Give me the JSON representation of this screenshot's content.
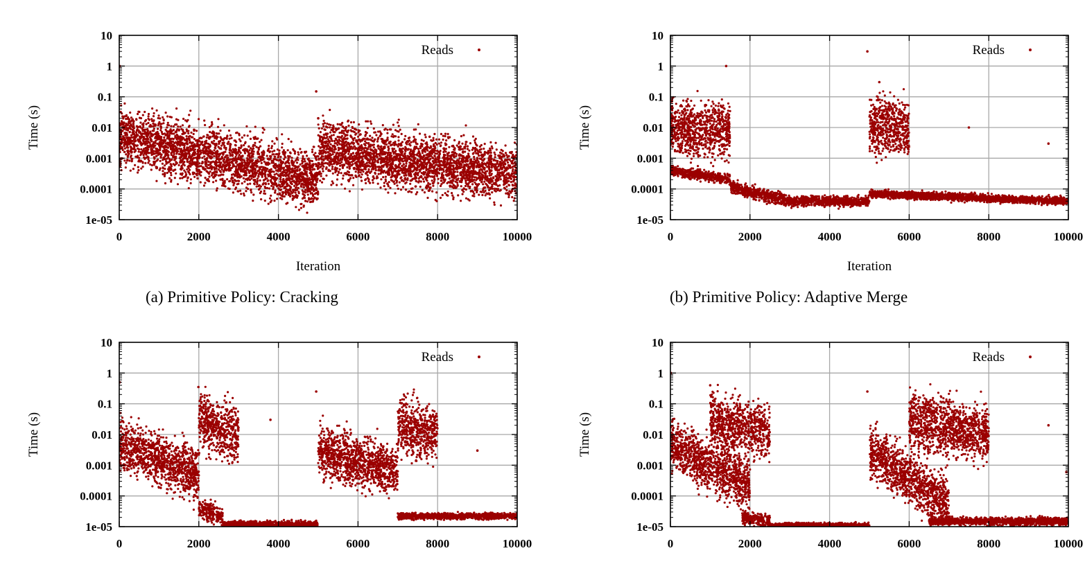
{
  "chart_data": [
    {
      "type": "scatter",
      "caption": "(a) Primitive Policy: Cracking",
      "xlabel": "Iteration",
      "ylabel": "Time (s)",
      "xlim": [
        0,
        10000
      ],
      "ylim": [
        1e-05,
        10
      ],
      "yscale": "log",
      "grid": true,
      "legend_position": "top-right",
      "x_ticks": [
        "0",
        "2000",
        "4000",
        "6000",
        "8000",
        "10000"
      ],
      "y_ticks": [
        "10",
        "1",
        "0.1",
        "0.01",
        "0.001",
        "0.0001",
        "1e-05"
      ],
      "series": [
        {
          "name": "Reads",
          "color": "#9b0000",
          "segments": [
            {
              "x0": 0,
              "x1": 5000,
              "y_start": 0.005,
              "y_end": 0.0002,
              "spread": 0.45
            },
            {
              "x0": 5000,
              "x1": 10000,
              "y_start": 0.002,
              "y_end": 0.0003,
              "spread": 0.45
            }
          ],
          "outliers": [
            [
              10,
              1.0
            ],
            [
              4950,
              0.15
            ],
            [
              5000,
              0.02
            ],
            [
              7800,
              0.005
            ]
          ]
        }
      ]
    },
    {
      "type": "scatter",
      "caption": "(b) Primitive Policy: Adaptive Merge",
      "xlabel": "Iteration",
      "ylabel": "Time (s)",
      "xlim": [
        0,
        10000
      ],
      "ylim": [
        1e-05,
        10
      ],
      "yscale": "log",
      "grid": true,
      "legend_position": "top-right",
      "x_ticks": [
        "0",
        "2000",
        "4000",
        "6000",
        "8000",
        "10000"
      ],
      "y_ticks": [
        "10",
        "1",
        "0.1",
        "0.01",
        "0.001",
        "0.0001",
        "1e-05"
      ],
      "series": [
        {
          "name": "Reads",
          "color": "#9b0000",
          "segments": [
            {
              "x0": 0,
              "x1": 1500,
              "y_start": 0.01,
              "y_end": 0.008,
              "spread": 0.45
            },
            {
              "x0": 0,
              "x1": 1500,
              "y_start": 0.0004,
              "y_end": 0.0002,
              "spread": 0.08
            },
            {
              "x0": 1500,
              "x1": 3000,
              "y_start": 0.00012,
              "y_end": 4e-05,
              "spread": 0.1
            },
            {
              "x0": 3000,
              "x1": 5000,
              "y_start": 4e-05,
              "y_end": 4e-05,
              "spread": 0.08
            },
            {
              "x0": 5000,
              "x1": 6000,
              "y_start": 0.012,
              "y_end": 0.01,
              "spread": 0.45
            },
            {
              "x0": 5000,
              "x1": 10000,
              "y_start": 7e-05,
              "y_end": 4e-05,
              "spread": 0.06
            }
          ],
          "outliers": [
            [
              1400,
              1.0
            ],
            [
              4950,
              3.0
            ],
            [
              5250,
              0.3
            ],
            [
              7500,
              0.01
            ],
            [
              9500,
              0.003
            ]
          ]
        }
      ]
    },
    {
      "type": "scatter",
      "caption": "",
      "xlabel": "Iteration",
      "ylabel": "Time (s)",
      "xlim": [
        0,
        10000
      ],
      "ylim": [
        1e-05,
        10
      ],
      "yscale": "log",
      "grid": true,
      "legend_position": "top-right",
      "x_ticks": [
        "0",
        "2000",
        "4000",
        "6000",
        "8000",
        "10000"
      ],
      "y_ticks": [
        "10",
        "1",
        "0.1",
        "0.01",
        "0.001",
        "0.0001",
        "1e-05"
      ],
      "series": [
        {
          "name": "Reads",
          "color": "#9b0000",
          "segments": [
            {
              "x0": 0,
              "x1": 2000,
              "y_start": 0.005,
              "y_end": 0.0005,
              "spread": 0.4
            },
            {
              "x0": 2000,
              "x1": 3000,
              "y_start": 0.03,
              "y_end": 0.01,
              "spread": 0.45
            },
            {
              "x0": 2000,
              "x1": 2600,
              "y_start": 4e-05,
              "y_end": 2e-05,
              "spread": 0.15
            },
            {
              "x0": 2600,
              "x1": 5000,
              "y_start": 1.2e-05,
              "y_end": 1.2e-05,
              "spread": 0.05
            },
            {
              "x0": 5000,
              "x1": 7000,
              "y_start": 0.003,
              "y_end": 0.0006,
              "spread": 0.4
            },
            {
              "x0": 7000,
              "x1": 8000,
              "y_start": 0.02,
              "y_end": 0.01,
              "spread": 0.45
            },
            {
              "x0": 7000,
              "x1": 10000,
              "y_start": 2.2e-05,
              "y_end": 2.2e-05,
              "spread": 0.05
            }
          ],
          "outliers": [
            [
              10,
              0.5
            ],
            [
              1990,
              0.35
            ],
            [
              4950,
              0.25
            ],
            [
              3800,
              0.03
            ],
            [
              9000,
              0.003
            ]
          ]
        }
      ]
    },
    {
      "type": "scatter",
      "caption": "",
      "xlabel": "Iteration",
      "ylabel": "Time (s)",
      "xlim": [
        0,
        10000
      ],
      "ylim": [
        1e-05,
        10
      ],
      "yscale": "log",
      "grid": true,
      "legend_position": "top-right",
      "x_ticks": [
        "0",
        "2000",
        "4000",
        "6000",
        "8000",
        "10000"
      ],
      "y_ticks": [
        "10",
        "1",
        "0.1",
        "0.01",
        "0.001",
        "0.0001",
        "1e-05"
      ],
      "series": [
        {
          "name": "Reads",
          "color": "#9b0000",
          "segments": [
            {
              "x0": 0,
              "x1": 2000,
              "y_start": 0.005,
              "y_end": 0.0002,
              "spread": 0.4
            },
            {
              "x0": 1000,
              "x1": 2500,
              "y_start": 0.03,
              "y_end": 0.01,
              "spread": 0.45
            },
            {
              "x0": 1800,
              "x1": 2500,
              "y_start": 2e-05,
              "y_end": 1.5e-05,
              "spread": 0.1
            },
            {
              "x0": 2500,
              "x1": 5000,
              "y_start": 1.1e-05,
              "y_end": 1.1e-05,
              "spread": 0.04
            },
            {
              "x0": 5000,
              "x1": 7000,
              "y_start": 0.003,
              "y_end": 5e-05,
              "spread": 0.4
            },
            {
              "x0": 6000,
              "x1": 8000,
              "y_start": 0.03,
              "y_end": 0.01,
              "spread": 0.45
            },
            {
              "x0": 6500,
              "x1": 10000,
              "y_start": 1.5e-05,
              "y_end": 1.5e-05,
              "spread": 0.06
            }
          ],
          "outliers": [
            [
              10,
              1.0
            ],
            [
              1000,
              0.4
            ],
            [
              4950,
              0.25
            ],
            [
              9500,
              0.02
            ],
            [
              9950,
              0.0006
            ]
          ]
        }
      ]
    }
  ]
}
